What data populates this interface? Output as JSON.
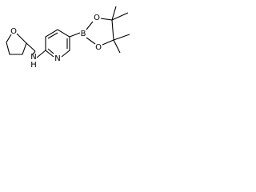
{
  "atoms": [
    {
      "label": "O"
    },
    {
      "label": "N"
    },
    {
      "label": "H"
    },
    {
      "label": "N"
    },
    {
      "label": "B"
    },
    {
      "label": "O"
    },
    {
      "label": "O"
    }
  ]
}
